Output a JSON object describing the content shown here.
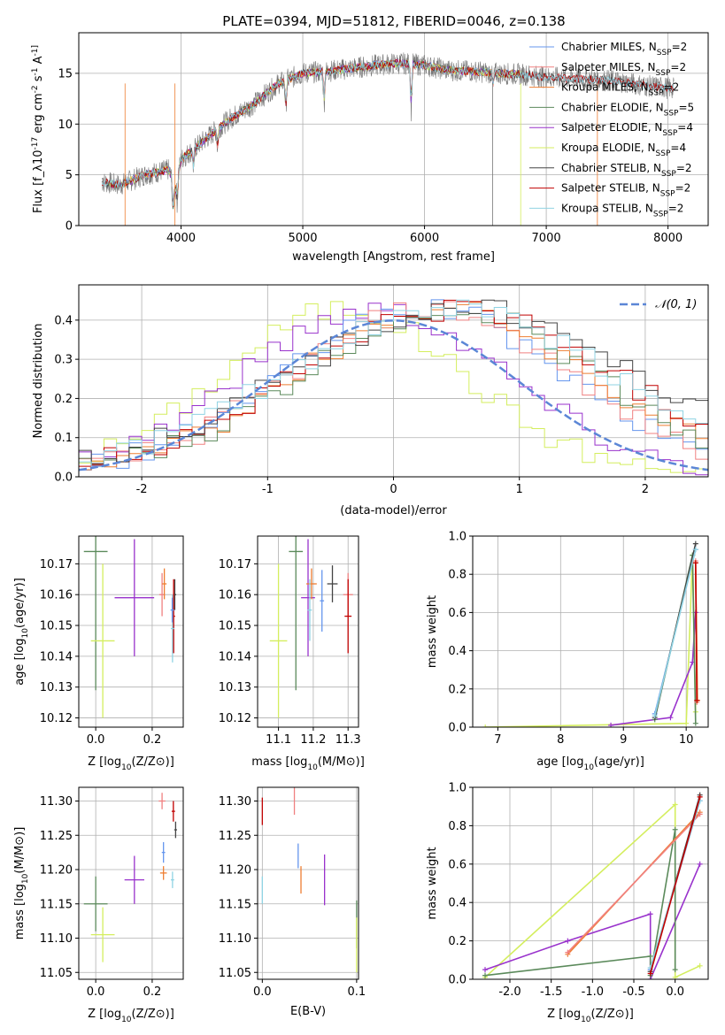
{
  "title": "PLATE=0394, MJD=51812, FIBERID=0046, z=0.138",
  "colors": {
    "cm": "#6495ed",
    "sm": "#f08080",
    "km": "#ee7e32",
    "ce": "#5b8a5b",
    "se": "#9932cc",
    "ke": "#d4ee5e",
    "cs": "#444444",
    "ss": "#c00000",
    "ks": "#8fd3e3",
    "grid": "#b0b0b0",
    "gauss": "#5b86d6",
    "spec": "#777777"
  },
  "panel_spectrum": {
    "xlabel": "wavelength [Angstrom, rest frame]",
    "ylabel": "Flux [f_λ10^-17 erg cm^-2 s^-1 A^-1]",
    "legend": [
      {
        "label": "Chabrier MILES, N_SSP=2",
        "color": "cm"
      },
      {
        "label": "Salpeter MILES, N_SSP=2",
        "color": "sm"
      },
      {
        "label": "Kroupa MILES, N_SSP=2",
        "color": "km"
      },
      {
        "label": "Chabrier ELODIE, N_SSP=5",
        "color": "ce"
      },
      {
        "label": "Salpeter ELODIE, N_SSP=4",
        "color": "se"
      },
      {
        "label": "Kroupa ELODIE, N_SSP=4",
        "color": "ke"
      },
      {
        "label": "Chabrier STELIB, N_SSP=2",
        "color": "cs"
      },
      {
        "label": "Salpeter STELIB, N_SSP=2",
        "color": "ss"
      },
      {
        "label": "Kroupa STELIB, N_SSP=2",
        "color": "ks"
      }
    ]
  },
  "panel_hist": {
    "xlabel": "(data-model)/error",
    "ylabel": "Normed distribution",
    "legend_label": "𝒩(0, 1)"
  },
  "panel_age_Z": {
    "xlabel": "Z [log10(Z/Z⊙)]",
    "ylabel": "age  [log10(age/yr)]"
  },
  "panel_age_mass": {
    "xlabel": "mass [log10(M/M⊙)]"
  },
  "panel_mw_age": {
    "xlabel": "age  [log10(age/yr)]",
    "ylabel": "mass weight"
  },
  "panel_mass_Z": {
    "xlabel": "Z [log10(Z/Z⊙)]",
    "ylabel": "mass [log10(M/M⊙)]"
  },
  "panel_mass_ebv": {
    "xlabel": "E(B-V)"
  },
  "panel_mw_Z": {
    "xlabel": "Z [log10(Z/Z⊙)]",
    "ylabel": "mass weight"
  },
  "chart_data": [
    {
      "type": "line",
      "title": "PLATE=0394, MJD=51812, FIBERID=0046, z=0.138",
      "xlabel": "wavelength [Angstrom, rest frame]",
      "ylabel": "Flux [f_λ10^-17 erg cm^-2 s^-1 A^-1]",
      "xlim": [
        3160,
        8330
      ],
      "ylim": [
        0,
        19
      ],
      "xticks": [
        4000,
        5000,
        6000,
        7000,
        8000
      ],
      "yticks": [
        0,
        5,
        10,
        15
      ],
      "legend_position": "upper right",
      "spectrum_profile": [
        [
          3350,
          4.3
        ],
        [
          3500,
          4.0
        ],
        [
          3700,
          5.0
        ],
        [
          3900,
          5.5
        ],
        [
          3950,
          3.5
        ],
        [
          4000,
          6.5
        ],
        [
          4200,
          8.5
        ],
        [
          4400,
          10.5
        ],
        [
          4600,
          12.0
        ],
        [
          4800,
          14.0
        ],
        [
          5000,
          15.0
        ],
        [
          5200,
          15.2
        ],
        [
          5400,
          15.5
        ],
        [
          5600,
          15.8
        ],
        [
          5800,
          16.0
        ],
        [
          6000,
          15.8
        ],
        [
          6200,
          15.3
        ],
        [
          6400,
          15.2
        ],
        [
          6600,
          15.0
        ],
        [
          6800,
          14.9
        ],
        [
          7000,
          14.6
        ],
        [
          7200,
          14.5
        ],
        [
          7400,
          14.4
        ],
        [
          7600,
          14.2
        ],
        [
          7800,
          13.8
        ],
        [
          8050,
          13.5
        ]
      ]
    },
    {
      "type": "bar",
      "xlabel": "(data-model)/error",
      "ylabel": "Normed distribution",
      "xlim": [
        -2.5,
        2.5
      ],
      "ylim": [
        0,
        0.49
      ],
      "xticks": [
        -2,
        -1,
        0,
        1,
        2
      ],
      "yticks": [
        0.0,
        0.1,
        0.2,
        0.3,
        0.4
      ],
      "gaussian": {
        "mean": 0,
        "sigma": 1,
        "label": "𝒩(0, 1)"
      },
      "legend_position": "upper right",
      "series_shape": [
        {
          "color": "ke",
          "peak": -0.4,
          "width": 0.95
        },
        {
          "color": "se",
          "peak": -0.15,
          "width": 1.05
        },
        {
          "color": "cm",
          "peak": 0.25,
          "width": 1.1
        },
        {
          "color": "sm",
          "peak": 0.3,
          "width": 1.1
        },
        {
          "color": "km",
          "peak": 0.4,
          "width": 1.15
        },
        {
          "color": "ce",
          "peak": 0.45,
          "width": 1.15
        },
        {
          "color": "ss",
          "peak": 0.5,
          "width": 1.25
        },
        {
          "color": "cs",
          "peak": 0.55,
          "width": 1.35
        },
        {
          "color": "ks",
          "peak": 0.45,
          "width": 1.3
        }
      ]
    },
    {
      "type": "scatter",
      "xlabel": "Z [log10(Z/Z⊙)]",
      "ylabel": "age  [log10(age/yr)]",
      "xlim": [
        -0.06,
        0.31
      ],
      "ylim": [
        10.117,
        10.179
      ],
      "xticks": [
        0.0,
        0.2
      ],
      "yticks": [
        10.12,
        10.13,
        10.14,
        10.15,
        10.16,
        10.17
      ],
      "points": [
        {
          "color": "ce",
          "x": 0.0,
          "y": 10.174,
          "xerr": 0.042,
          "yerr": 0.045
        },
        {
          "color": "ke",
          "x": 0.025,
          "y": 10.145,
          "xerr": 0.042,
          "yerr": 0.025
        },
        {
          "color": "se",
          "x": 0.137,
          "y": 10.159,
          "xerr": 0.07,
          "yerr": 0.019
        },
        {
          "color": "sm",
          "x": 0.235,
          "y": 10.16,
          "xerr": 0.01,
          "yerr": 0.007
        },
        {
          "color": "km",
          "x": 0.243,
          "y": 10.1635,
          "xerr": 0.008,
          "yerr": 0.005
        },
        {
          "color": "cs",
          "x": 0.28,
          "y": 10.16,
          "xerr": 0.005,
          "yerr": 0.005
        },
        {
          "color": "ss",
          "x": 0.276,
          "y": 10.153,
          "xerr": 0.005,
          "yerr": 0.012
        },
        {
          "color": "ks",
          "x": 0.272,
          "y": 10.149,
          "xerr": 0.006,
          "yerr": 0.011
        },
        {
          "color": "cm",
          "x": 0.271,
          "y": 10.155,
          "xerr": 0.006,
          "yerr": 0.004
        }
      ]
    },
    {
      "type": "scatter",
      "xlabel": "mass [log10(M/M⊙)]",
      "xlim": [
        11.04,
        11.33
      ],
      "ylim": [
        10.117,
        10.179
      ],
      "xticks": [
        11.1,
        11.2,
        11.3
      ],
      "yticks": [
        10.12,
        10.13,
        10.14,
        10.15,
        10.16,
        10.17
      ],
      "points": [
        {
          "color": "ce",
          "x": 11.15,
          "y": 10.174,
          "xerr": 0.02,
          "yerr": 0.045
        },
        {
          "color": "ke",
          "x": 11.1,
          "y": 10.145,
          "xerr": 0.025,
          "yerr": 0.025
        },
        {
          "color": "se",
          "x": 11.185,
          "y": 10.159,
          "xerr": 0.02,
          "yerr": 0.019
        },
        {
          "color": "sm",
          "x": 11.3,
          "y": 10.16,
          "xerr": 0.014,
          "yerr": 0.007
        },
        {
          "color": "km",
          "x": 11.195,
          "y": 10.1635,
          "xerr": 0.015,
          "yerr": 0.005
        },
        {
          "color": "cs",
          "x": 11.255,
          "y": 10.1635,
          "xerr": 0.015,
          "yerr": 0.006
        },
        {
          "color": "ss",
          "x": 11.3,
          "y": 10.153,
          "xerr": 0.01,
          "yerr": 0.012
        },
        {
          "color": "ks",
          "x": 11.19,
          "y": 10.155,
          "xerr": 0.006,
          "yerr": 0.01
        },
        {
          "color": "cm",
          "x": 11.225,
          "y": 10.158,
          "xerr": 0.006,
          "yerr": 0.01
        }
      ]
    },
    {
      "type": "line",
      "xlabel": "age  [log10(age/yr)]",
      "ylabel": "mass weight",
      "xlim": [
        6.6,
        10.35
      ],
      "ylim": [
        0,
        1
      ],
      "xticks": [
        7,
        8,
        9,
        10
      ],
      "yticks": [
        0.0,
        0.2,
        0.4,
        0.6,
        0.8,
        1.0
      ],
      "series": [
        {
          "color": "ke",
          "points": [
            [
              6.8,
              0.0
            ],
            [
              10.0,
              0.02
            ],
            [
              10.1,
              0.9
            ],
            [
              10.15,
              0.08
            ]
          ]
        },
        {
          "color": "se",
          "points": [
            [
              8.8,
              0.01
            ],
            [
              9.75,
              0.05
            ],
            [
              10.1,
              0.34
            ],
            [
              10.15,
              0.6
            ]
          ]
        },
        {
          "color": "ce",
          "points": [
            [
              9.5,
              0.04
            ],
            [
              10.1,
              0.9
            ],
            [
              10.15,
              0.02
            ]
          ]
        },
        {
          "color": "cm",
          "points": [
            [
              9.5,
              0.07
            ],
            [
              10.15,
              0.93
            ]
          ]
        },
        {
          "color": "cs",
          "points": [
            [
              9.5,
              0.05
            ],
            [
              10.15,
              0.96
            ]
          ]
        },
        {
          "color": "ks",
          "points": [
            [
              9.5,
              0.06
            ],
            [
              10.15,
              0.93
            ]
          ]
        },
        {
          "color": "sm",
          "points": [
            [
              10.15,
              0.87
            ],
            [
              10.17,
              0.13
            ]
          ]
        },
        {
          "color": "km",
          "points": [
            [
              10.15,
              0.86
            ],
            [
              10.18,
              0.14
            ]
          ]
        },
        {
          "color": "ss",
          "points": [
            [
              10.15,
              0.86
            ],
            [
              10.17,
              0.14
            ]
          ]
        }
      ]
    },
    {
      "type": "scatter",
      "xlabel": "Z [log10(Z/Z⊙)]",
      "ylabel": "mass [log10(M/M⊙)]",
      "xlim": [
        -0.06,
        0.31
      ],
      "ylim": [
        11.04,
        11.32
      ],
      "xticks": [
        0.0,
        0.2
      ],
      "yticks": [
        11.05,
        11.1,
        11.15,
        11.2,
        11.25,
        11.3
      ],
      "points": [
        {
          "color": "ce",
          "x": 0.0,
          "y": 11.15,
          "xerr": 0.042,
          "yerr": 0.04
        },
        {
          "color": "ke",
          "x": 0.025,
          "y": 11.105,
          "xerr": 0.042,
          "yerr": 0.04
        },
        {
          "color": "se",
          "x": 0.137,
          "y": 11.185,
          "xerr": 0.035,
          "yerr": 0.035
        },
        {
          "color": "sm",
          "x": 0.235,
          "y": 11.3,
          "xerr": 0.012,
          "yerr": 0.012
        },
        {
          "color": "km",
          "x": 0.24,
          "y": 11.195,
          "xerr": 0.012,
          "yerr": 0.01
        },
        {
          "color": "cm",
          "x": 0.24,
          "y": 11.225,
          "xerr": 0.006,
          "yerr": 0.015
        },
        {
          "color": "cs",
          "x": 0.283,
          "y": 11.258,
          "xerr": 0.005,
          "yerr": 0.012
        },
        {
          "color": "ss",
          "x": 0.275,
          "y": 11.285,
          "xerr": 0.006,
          "yerr": 0.015
        },
        {
          "color": "ks",
          "x": 0.272,
          "y": 11.185,
          "xerr": 0.006,
          "yerr": 0.012
        }
      ]
    },
    {
      "type": "scatter",
      "xlabel": "E(B-V)",
      "xlim": [
        -0.005,
        0.102
      ],
      "ylim": [
        11.04,
        11.32
      ],
      "xticks": [
        0.0,
        0.1
      ],
      "yticks": [
        11.05,
        11.1,
        11.15,
        11.2,
        11.25,
        11.3
      ],
      "points": [
        {
          "color": "ss",
          "x": 0.0,
          "y": 11.285,
          "xerr": 0.0,
          "yerr": 0.02
        },
        {
          "color": "ks",
          "x": 0.0,
          "y": 11.17,
          "xerr": 0.0,
          "yerr": 0.02
        },
        {
          "color": "sm",
          "x": 0.034,
          "y": 11.3,
          "xerr": 0.0,
          "yerr": 0.02
        },
        {
          "color": "cm",
          "x": 0.038,
          "y": 11.22,
          "xerr": 0.0,
          "yerr": 0.018
        },
        {
          "color": "km",
          "x": 0.041,
          "y": 11.185,
          "xerr": 0.0,
          "yerr": 0.02
        },
        {
          "color": "se",
          "x": 0.066,
          "y": 11.185,
          "xerr": 0.0,
          "yerr": 0.037
        },
        {
          "color": "ce",
          "x": 0.1,
          "y": 11.12,
          "xerr": 0.0,
          "yerr": 0.035
        },
        {
          "color": "ke",
          "x": 0.1,
          "y": 11.09,
          "xerr": 0.0,
          "yerr": 0.04
        }
      ]
    },
    {
      "type": "line",
      "xlabel": "Z [log10(Z/Z⊙)]",
      "ylabel": "mass weight",
      "xlim": [
        -2.45,
        0.4
      ],
      "ylim": [
        0,
        1
      ],
      "xticks": [
        -2.0,
        -1.5,
        -1.0,
        -0.5,
        0.0
      ],
      "yticks": [
        0.0,
        0.2,
        0.4,
        0.6,
        0.8,
        1.0
      ],
      "series": [
        {
          "color": "ke",
          "points": [
            [
              -2.3,
              0.01
            ],
            [
              0.0,
              0.91
            ],
            [
              0.0,
              0.01
            ],
            [
              0.3,
              0.07
            ]
          ]
        },
        {
          "color": "se",
          "points": [
            [
              -2.3,
              0.05
            ],
            [
              -1.3,
              0.2
            ],
            [
              -0.3,
              0.34
            ],
            [
              -0.3,
              0.0
            ],
            [
              0.3,
              0.6
            ]
          ]
        },
        {
          "color": "ce",
          "points": [
            [
              -2.3,
              0.02
            ],
            [
              -0.3,
              0.12
            ],
            [
              -0.3,
              0.02
            ],
            [
              0.0,
              0.78
            ],
            [
              0.0,
              0.05
            ]
          ]
        },
        {
          "color": "km",
          "points": [
            [
              -1.3,
              0.13
            ],
            [
              0.3,
              0.87
            ]
          ]
        },
        {
          "color": "sm",
          "points": [
            [
              -1.3,
              0.14
            ],
            [
              0.3,
              0.86
            ]
          ]
        },
        {
          "color": "cm",
          "points": [
            [
              -0.3,
              0.05
            ],
            [
              0.3,
              0.93
            ]
          ]
        },
        {
          "color": "cs",
          "points": [
            [
              -0.3,
              0.04
            ],
            [
              0.3,
              0.96
            ]
          ]
        },
        {
          "color": "ks",
          "points": [
            [
              -0.3,
              0.06
            ],
            [
              0.3,
              0.93
            ]
          ]
        },
        {
          "color": "ss",
          "points": [
            [
              -0.3,
              0.03
            ],
            [
              0.3,
              0.95
            ]
          ]
        }
      ]
    }
  ]
}
